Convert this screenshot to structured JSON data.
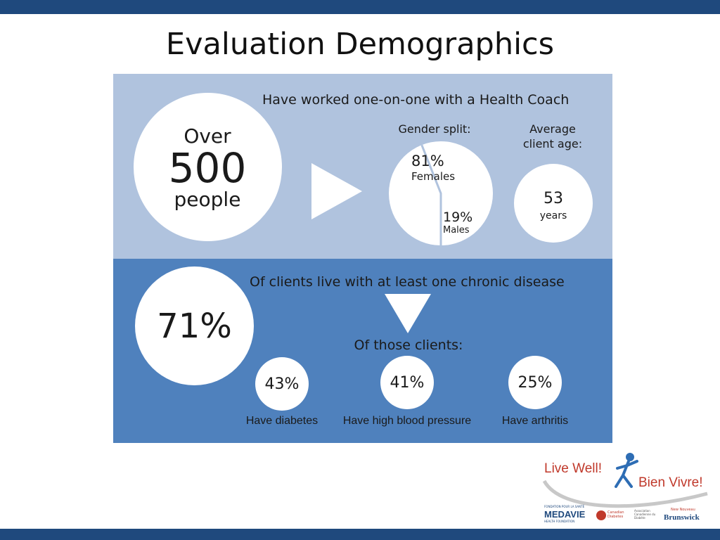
{
  "title": "Evaluation Demographics",
  "colors": {
    "header_bar": "#1f497d",
    "top_panel": "#b0c3de",
    "bottom_panel": "#4f81bd",
    "circle": "#ffffff",
    "logo_red": "#c0392b",
    "logo_blue": "#2e6db4"
  },
  "coach_section": {
    "heading": "Have worked one-on-one with a Health Coach",
    "big_circle": {
      "line1": "Over",
      "number": "500",
      "line3": "people"
    },
    "gender": {
      "label": "Gender split:",
      "female_pct": "81%",
      "female_label": "Females",
      "male_pct": "19%",
      "male_label": "Males",
      "female_share": 0.81
    },
    "age": {
      "label_line1": "Average",
      "label_line2": "client age:",
      "value": "53",
      "unit": "years"
    }
  },
  "chronic_section": {
    "big_value": "71%",
    "heading": "Of clients live with at least one chronic disease",
    "sub_heading": "Of those clients:",
    "stats": [
      {
        "value": "43%",
        "label": "Have diabetes"
      },
      {
        "value": "41%",
        "label": "Have high blood pressure"
      },
      {
        "value": "25%",
        "label": "Have arthritis"
      }
    ]
  },
  "logo": {
    "line1": "Live Well!",
    "line2": "Bien Vivre!",
    "sponsors": [
      "FONDATION POUR LA SANTÉ",
      "MEDAVIE",
      "HEALTH FOUNDATION",
      "Canadian Diabetes",
      "Association Canadienne du Diabète",
      "New Nouveau",
      "Brunswick"
    ]
  }
}
